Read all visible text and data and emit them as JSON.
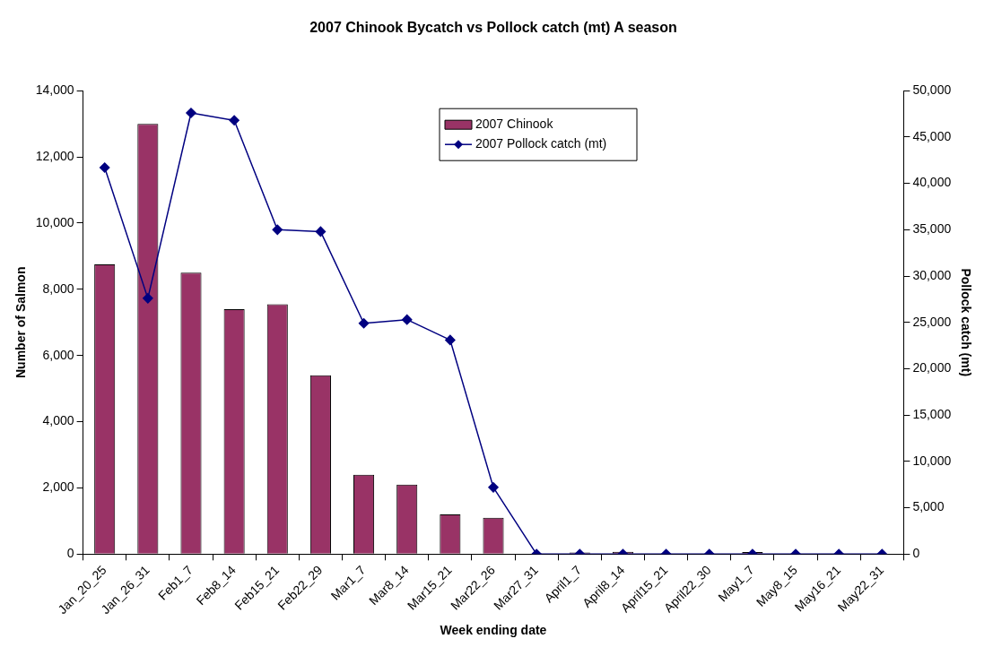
{
  "chart_data": {
    "type": "bar",
    "title": "2007 Chinook Bycatch vs Pollock catch (mt) A season",
    "xlabel": "Week ending date",
    "ylabel": "Number of Salmon",
    "y2label": "Pollock catch (mt)",
    "categories": [
      "Jan_20_25",
      "Jan_26_31",
      "Feb1_7",
      "Feb8_14",
      "Feb15_21",
      "Feb22_29",
      "Mar1_7",
      "Mar8_14",
      "Mar15_21",
      "Mar22_26",
      "Mar27_31",
      "April1_7",
      "April8_14",
      "April15_21",
      "April22_30",
      "May1_7",
      "May8_15",
      "May16_21",
      "May22_31"
    ],
    "series": [
      {
        "name": "2007 Chinook",
        "color": "#993366",
        "values": [
          8750,
          13000,
          8500,
          7400,
          7550,
          5400,
          2400,
          2100,
          1200,
          1100,
          0,
          50,
          70,
          0,
          null,
          60,
          0,
          0,
          0
        ]
      },
      {
        "name": "2007 Pollock catch (mt)",
        "type": "line",
        "axis": "y2",
        "color": "#000080",
        "marker": "diamond",
        "values": [
          41700,
          27600,
          47600,
          46800,
          35000,
          34800,
          24900,
          25300,
          23100,
          7200,
          0,
          0,
          0,
          0,
          0,
          0,
          0,
          0,
          0
        ]
      }
    ],
    "ylim": [
      0,
      14000
    ],
    "yticks": [
      0,
      {
        "value": 2000,
        "label": "2,000"
      },
      {
        "value": 4000,
        "label": "4,000"
      },
      {
        "value": 6000,
        "label": "6,000"
      },
      {
        "value": 8000,
        "label": "8,000"
      },
      {
        "value": 10000,
        "label": "10,000"
      },
      {
        "value": 12000,
        "label": "12,000"
      },
      {
        "value": 14000,
        "label": "14,000"
      }
    ],
    "y2lim": [
      0,
      50000
    ],
    "y2ticks": [
      0,
      {
        "value": 5000,
        "label": "5,000"
      },
      {
        "value": 10000,
        "label": "10,000"
      },
      {
        "value": 15000,
        "label": "15,000"
      },
      {
        "value": 20000,
        "label": "20,000"
      },
      {
        "value": 25000,
        "label": "25,000"
      },
      {
        "value": 30000,
        "label": "30,000"
      },
      {
        "value": 35000,
        "label": "35,000"
      },
      {
        "value": 40000,
        "label": "40,000"
      },
      {
        "value": 45000,
        "label": "45,000"
      },
      {
        "value": 50000,
        "label": "50,000"
      }
    ],
    "grid": false,
    "legend": "top"
  }
}
